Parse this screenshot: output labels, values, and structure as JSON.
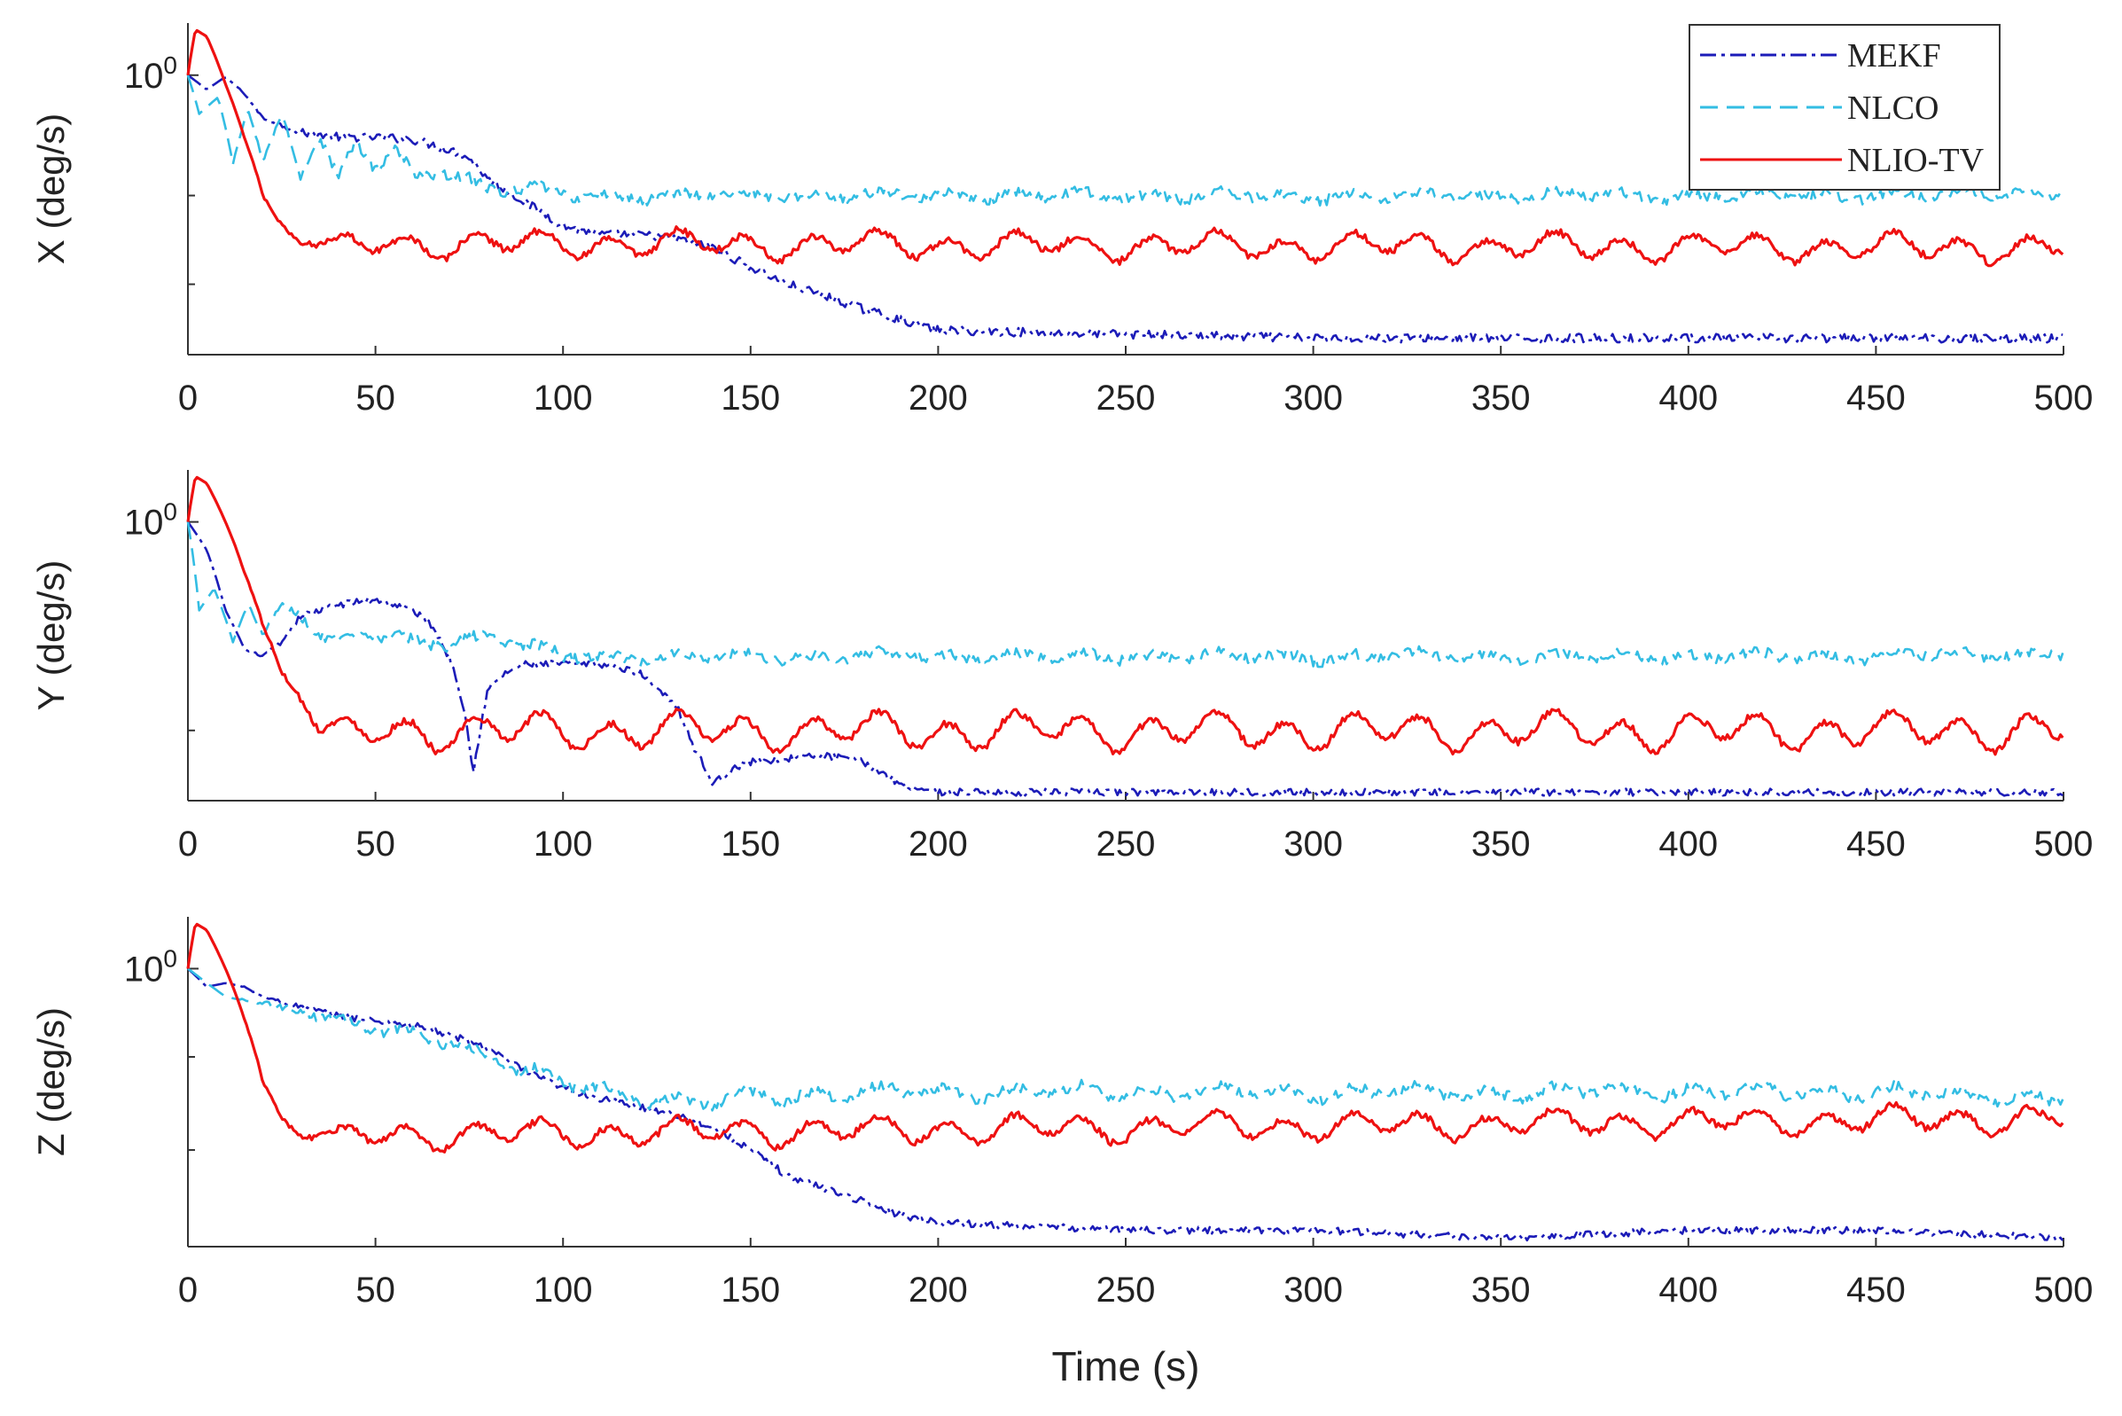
{
  "chart_data": {
    "type": "line",
    "xlabel": "Time (s)",
    "x_ticks": [
      0,
      50,
      100,
      150,
      200,
      250,
      300,
      350,
      400,
      450,
      500
    ],
    "xlim": [
      0,
      500
    ],
    "yscale": "log",
    "y_tick_label_main": "10",
    "y_tick_label_exp": "0",
    "legend": {
      "position": "top-right",
      "entries": [
        {
          "name": "MEKF",
          "color": "#1c1cb8",
          "style": "dash-dot"
        },
        {
          "name": "NLCO",
          "color": "#33bde3",
          "style": "dashed"
        },
        {
          "name": "NLIO-TV",
          "color": "#ee1111",
          "style": "solid"
        }
      ]
    },
    "panels": [
      {
        "ylabel": "X (deg/s)",
        "ylim": [
          0.2,
          1.35
        ],
        "minor_ticks": [
          0.5,
          0.3
        ],
        "series": [
          {
            "name": "MEKF",
            "color": "#1c1cb8",
            "x": [
              0,
              5,
              10,
              15,
              20,
              30,
              40,
              50,
              60,
              70,
              75,
              80,
              90,
              100,
              110,
              120,
              130,
              140,
              150,
              160,
              170,
              180,
              200,
              250,
              300,
              350,
              400,
              450,
              500
            ],
            "y": [
              1.0,
              0.92,
              0.99,
              0.9,
              0.78,
              0.72,
              0.7,
              0.7,
              0.69,
              0.65,
              0.62,
              0.55,
              0.48,
              0.42,
              0.4,
              0.4,
              0.39,
              0.37,
              0.33,
              0.3,
              0.28,
              0.26,
              0.23,
              0.225,
              0.22,
              0.22,
              0.22,
              0.22,
              0.22
            ],
            "noise": 0.025
          },
          {
            "name": "NLCO",
            "color": "#33bde3",
            "x": [
              0,
              3,
              8,
              12,
              16,
              20,
              25,
              30,
              35,
              40,
              45,
              50,
              55,
              60,
              70,
              80,
              90,
              100,
              150,
              200,
              250,
              300,
              350,
              400,
              450,
              500
            ],
            "y": [
              1.0,
              0.8,
              0.88,
              0.6,
              0.82,
              0.6,
              0.8,
              0.55,
              0.7,
              0.55,
              0.68,
              0.58,
              0.65,
              0.56,
              0.58,
              0.52,
              0.52,
              0.5,
              0.5,
              0.5,
              0.5,
              0.5,
              0.5,
              0.5,
              0.5,
              0.51
            ],
            "noise": 0.03,
            "wave": 0.02
          },
          {
            "name": "NLIO-TV",
            "color": "#ee1111",
            "x": [
              0,
              2,
              5,
              10,
              15,
              20,
              25,
              30,
              500
            ],
            "y": [
              1.0,
              1.3,
              1.25,
              0.95,
              0.7,
              0.5,
              0.42,
              0.38,
              0.37
            ],
            "noise": 0.02,
            "wave": 0.06
          }
        ]
      },
      {
        "ylabel": "Y (deg/s)",
        "ylim": [
          0.2,
          1.35
        ],
        "minor_ticks": [
          0.3
        ],
        "series": [
          {
            "name": "MEKF",
            "color": "#1c1cb8",
            "x": [
              0,
              5,
              10,
              15,
              20,
              25,
              30,
              40,
              50,
              60,
              65,
              70,
              74,
              76,
              80,
              85,
              90,
              100,
              110,
              120,
              130,
              135,
              140,
              145,
              150,
              170,
              180,
              190,
              200,
              250,
              300,
              350,
              400,
              450,
              500
            ],
            "y": [
              1.0,
              0.85,
              0.6,
              0.48,
              0.46,
              0.5,
              0.58,
              0.62,
              0.64,
              0.6,
              0.55,
              0.45,
              0.33,
              0.23,
              0.38,
              0.42,
              0.44,
              0.44,
              0.44,
              0.42,
              0.35,
              0.27,
              0.22,
              0.24,
              0.25,
              0.26,
              0.25,
              0.22,
              0.21,
              0.21,
              0.21,
              0.21,
              0.21,
              0.21,
              0.21
            ],
            "noise": 0.02
          },
          {
            "name": "NLCO",
            "color": "#33bde3",
            "x": [
              0,
              3,
              7,
              12,
              16,
              20,
              25,
              30,
              35,
              40,
              50,
              60,
              70,
              80,
              90,
              100,
              150,
              200,
              250,
              300,
              350,
              400,
              450,
              500
            ],
            "y": [
              1.0,
              0.6,
              0.68,
              0.5,
              0.62,
              0.52,
              0.62,
              0.58,
              0.52,
              0.5,
              0.52,
              0.5,
              0.5,
              0.52,
              0.49,
              0.46,
              0.46,
              0.46,
              0.46,
              0.46,
              0.46,
              0.46,
              0.46,
              0.47
            ],
            "noise": 0.03,
            "wave": 0.02
          },
          {
            "name": "NLIO-TV",
            "color": "#ee1111",
            "x": [
              0,
              2,
              5,
              10,
              15,
              20,
              25,
              30,
              35,
              40,
              500
            ],
            "y": [
              1.0,
              1.3,
              1.25,
              1.0,
              0.75,
              0.55,
              0.42,
              0.36,
              0.3,
              0.3,
              0.3
            ],
            "noise": 0.02,
            "wave": 0.08
          }
        ]
      },
      {
        "ylabel": "Z (deg/s)",
        "ylim": [
          0.2,
          1.35
        ],
        "minor_ticks": [
          0.6,
          0.35
        ],
        "series": [
          {
            "name": "MEKF",
            "color": "#1c1cb8",
            "x": [
              0,
              5,
              10,
              15,
              20,
              30,
              40,
              50,
              60,
              70,
              80,
              90,
              100,
              110,
              120,
              130,
              140,
              150,
              160,
              170,
              180,
              190,
              200,
              250,
              300,
              350,
              400,
              450,
              500
            ],
            "y": [
              1.0,
              0.9,
              0.92,
              0.9,
              0.85,
              0.8,
              0.76,
              0.74,
              0.72,
              0.68,
              0.63,
              0.55,
              0.5,
              0.47,
              0.45,
              0.43,
              0.4,
              0.35,
              0.3,
              0.28,
              0.26,
              0.24,
              0.23,
              0.22,
              0.22,
              0.21,
              0.22,
              0.22,
              0.21
            ],
            "noise": 0.02
          },
          {
            "name": "NLCO",
            "color": "#33bde3",
            "x": [
              0,
              5,
              10,
              20,
              30,
              40,
              50,
              60,
              70,
              80,
              90,
              100,
              110,
              120,
              130,
              140,
              150,
              200,
              250,
              300,
              350,
              400,
              450,
              500
            ],
            "y": [
              1.0,
              0.92,
              0.85,
              0.82,
              0.78,
              0.74,
              0.7,
              0.68,
              0.66,
              0.6,
              0.55,
              0.52,
              0.5,
              0.48,
              0.46,
              0.46,
              0.48,
              0.49,
              0.49,
              0.49,
              0.49,
              0.49,
              0.49,
              0.47
            ],
            "noise": 0.03,
            "wave": 0.03
          },
          {
            "name": "NLIO-TV",
            "color": "#ee1111",
            "x": [
              0,
              2,
              5,
              10,
              15,
              20,
              25,
              30,
              500
            ],
            "y": [
              1.0,
              1.3,
              1.25,
              1.0,
              0.75,
              0.52,
              0.42,
              0.38,
              0.42
            ],
            "noise": 0.02,
            "wave": 0.06
          }
        ]
      }
    ]
  }
}
